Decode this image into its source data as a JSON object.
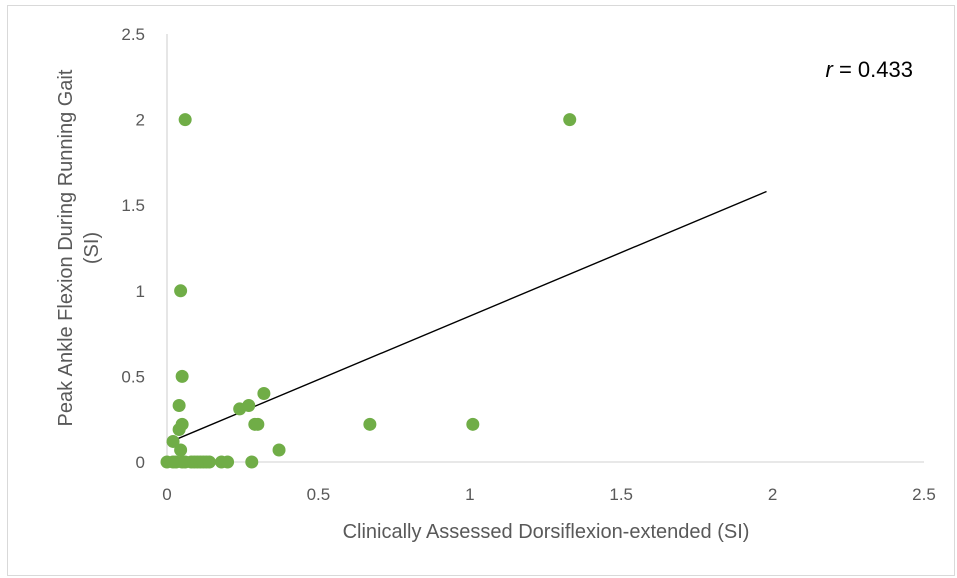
{
  "chart_data": {
    "type": "scatter",
    "title": "",
    "xlabel": "Clinically Assessed Dorsiflexion-extended (SI)",
    "ylabel_line1": "Peak Ankle Flexion During Running Gait",
    "ylabel_line2": "(SI)",
    "xlim": [
      0,
      2.5
    ],
    "ylim": [
      0,
      2.5
    ],
    "x_ticks": [
      "0",
      "0.5",
      "1",
      "1.5",
      "2",
      "2.5"
    ],
    "y_ticks": [
      "0",
      "0.5",
      "1",
      "1.5",
      "2",
      "2.5"
    ],
    "grid": false,
    "legend": "none",
    "annotation": {
      "italic": "r",
      "rest": " = 0.433"
    },
    "trendline": {
      "x": [
        0,
        1.98
      ],
      "y": [
        0.11,
        1.58
      ]
    },
    "colors": {
      "marker": "#70ad47",
      "axis": "#d9d9d9",
      "trendline": "#000000",
      "text": "#595959"
    },
    "points": [
      {
        "x": 0.0,
        "y": 0.0
      },
      {
        "x": 0.02,
        "y": 0.0
      },
      {
        "x": 0.03,
        "y": 0.0
      },
      {
        "x": 0.05,
        "y": 0.0
      },
      {
        "x": 0.06,
        "y": 0.0
      },
      {
        "x": 0.08,
        "y": 0.0
      },
      {
        "x": 0.09,
        "y": 0.0
      },
      {
        "x": 0.1,
        "y": 0.0
      },
      {
        "x": 0.11,
        "y": 0.0
      },
      {
        "x": 0.12,
        "y": 0.0
      },
      {
        "x": 0.13,
        "y": 0.0
      },
      {
        "x": 0.14,
        "y": 0.0
      },
      {
        "x": 0.18,
        "y": 0.0
      },
      {
        "x": 0.2,
        "y": 0.0
      },
      {
        "x": 0.28,
        "y": 0.0
      },
      {
        "x": 0.02,
        "y": 0.12
      },
      {
        "x": 0.045,
        "y": 0.07
      },
      {
        "x": 0.04,
        "y": 0.19
      },
      {
        "x": 0.05,
        "y": 0.22
      },
      {
        "x": 0.04,
        "y": 0.33
      },
      {
        "x": 0.05,
        "y": 0.5
      },
      {
        "x": 0.045,
        "y": 1.0
      },
      {
        "x": 0.06,
        "y": 2.0
      },
      {
        "x": 0.24,
        "y": 0.31
      },
      {
        "x": 0.27,
        "y": 0.33
      },
      {
        "x": 0.29,
        "y": 0.22
      },
      {
        "x": 0.3,
        "y": 0.22
      },
      {
        "x": 0.32,
        "y": 0.4
      },
      {
        "x": 0.37,
        "y": 0.07
      },
      {
        "x": 0.67,
        "y": 0.22
      },
      {
        "x": 1.01,
        "y": 0.22
      },
      {
        "x": 1.33,
        "y": 2.0
      }
    ]
  }
}
